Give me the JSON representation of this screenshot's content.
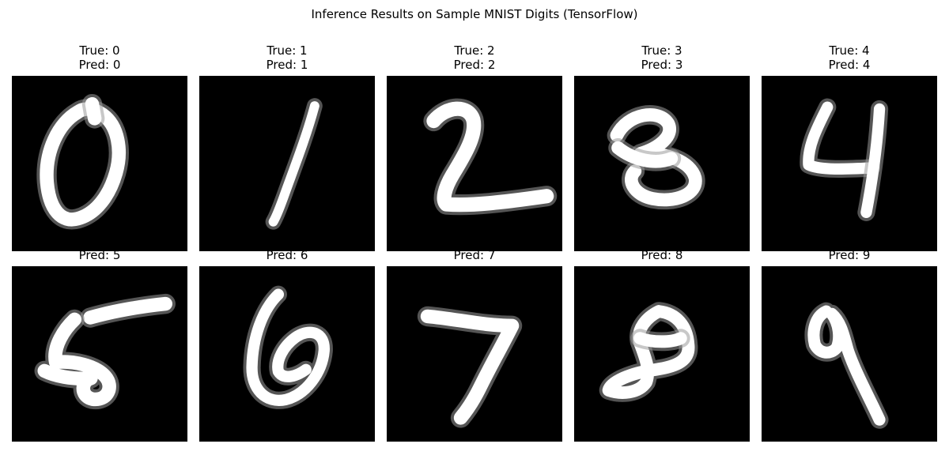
{
  "suptitle": "Inference Results on Sample MNIST Digits (TensorFlow)",
  "chart_data": {
    "type": "image_grid",
    "title": "Inference Results on Sample MNIST Digits (TensorFlow)",
    "colormap": "gray",
    "background_color": "#000000",
    "foreground_color": "#ffffff",
    "rows": 2,
    "cols": 5,
    "panels": [
      {
        "digit": "0",
        "true_label": "True: 0",
        "pred_label": "Pred: 0",
        "true_shown": true
      },
      {
        "digit": "1",
        "true_label": "True: 1",
        "pred_label": "Pred: 1",
        "true_shown": true
      },
      {
        "digit": "2",
        "true_label": "True: 2",
        "pred_label": "Pred: 2",
        "true_shown": true
      },
      {
        "digit": "3",
        "true_label": "True: 3",
        "pred_label": "Pred: 3",
        "true_shown": true
      },
      {
        "digit": "4",
        "true_label": "True: 4",
        "pred_label": "Pred: 4",
        "true_shown": true
      },
      {
        "digit": "5",
        "pred_label": "Pred: 5",
        "true_shown": false
      },
      {
        "digit": "6",
        "pred_label": "Pred: 6",
        "true_shown": false
      },
      {
        "digit": "7",
        "pred_label": "Pred: 7",
        "true_shown": false
      },
      {
        "digit": "8",
        "pred_label": "Pred: 8",
        "true_shown": false
      },
      {
        "digit": "9",
        "pred_label": "Pred: 9",
        "true_shown": false
      }
    ]
  }
}
